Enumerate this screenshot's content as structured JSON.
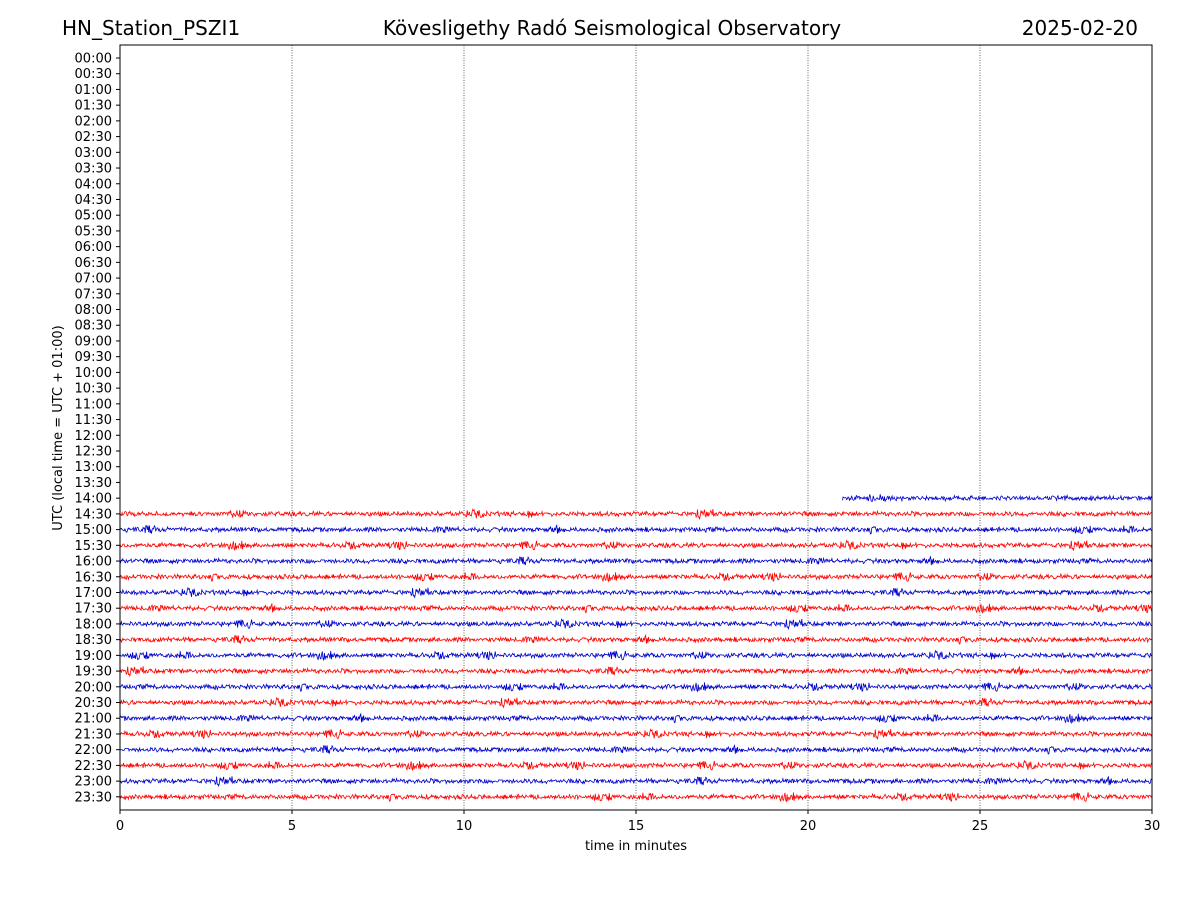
{
  "header": {
    "station": "HN_Station_PSZI1",
    "observatory": "Kövesligethy Radó Seismological Observatory",
    "date": "2025-02-20"
  },
  "colors": {
    "odd": "#ff0000",
    "even": "#0000cc",
    "grid": "#000000"
  },
  "chart_data": {
    "type": "line",
    "title": "Kövesligethy Radó Seismological Observatory",
    "xlabel": "time in minutes",
    "ylabel": "UTC (local time = UTC + 01:00)",
    "xlim": [
      0,
      30
    ],
    "xticks": [
      0,
      5,
      10,
      15,
      20,
      25,
      30
    ],
    "grid": "vertical dotted at x ticks",
    "rows": [
      "00:00",
      "00:30",
      "01:00",
      "01:30",
      "02:00",
      "02:30",
      "03:00",
      "03:30",
      "04:00",
      "04:30",
      "05:00",
      "05:30",
      "06:00",
      "06:30",
      "07:00",
      "07:30",
      "08:00",
      "08:30",
      "09:00",
      "09:30",
      "10:00",
      "10:30",
      "11:00",
      "11:30",
      "12:00",
      "12:30",
      "13:00",
      "13:30",
      "14:00",
      "14:30",
      "15:00",
      "15:30",
      "16:00",
      "16:30",
      "17:00",
      "17:30",
      "18:00",
      "18:30",
      "19:00",
      "19:30",
      "20:00",
      "20:30",
      "21:00",
      "21:30",
      "22:00",
      "22:30",
      "23:00",
      "23:30"
    ],
    "traces": [
      {
        "row": "14:00",
        "start_min": 21.0,
        "end_min": 30
      },
      {
        "row": "14:30",
        "start_min": 0,
        "end_min": 30
      },
      {
        "row": "15:00",
        "start_min": 0,
        "end_min": 30
      },
      {
        "row": "15:30",
        "start_min": 0,
        "end_min": 30
      },
      {
        "row": "16:00",
        "start_min": 0,
        "end_min": 30
      },
      {
        "row": "16:30",
        "start_min": 0,
        "end_min": 30
      },
      {
        "row": "17:00",
        "start_min": 0,
        "end_min": 30
      },
      {
        "row": "17:30",
        "start_min": 0,
        "end_min": 30
      },
      {
        "row": "18:00",
        "start_min": 0,
        "end_min": 30
      },
      {
        "row": "18:30",
        "start_min": 0,
        "end_min": 30
      },
      {
        "row": "19:00",
        "start_min": 0,
        "end_min": 30
      },
      {
        "row": "19:30",
        "start_min": 0,
        "end_min": 30
      },
      {
        "row": "20:00",
        "start_min": 0,
        "end_min": 30
      },
      {
        "row": "20:30",
        "start_min": 0,
        "end_min": 30
      },
      {
        "row": "21:00",
        "start_min": 0,
        "end_min": 30
      },
      {
        "row": "21:30",
        "start_min": 0,
        "end_min": 30
      },
      {
        "row": "22:00",
        "start_min": 0,
        "end_min": 30
      },
      {
        "row": "22:30",
        "start_min": 0,
        "end_min": 30
      },
      {
        "row": "23:00",
        "start_min": 0,
        "end_min": 30
      },
      {
        "row": "23:30",
        "start_min": 0,
        "end_min": 30
      }
    ]
  }
}
